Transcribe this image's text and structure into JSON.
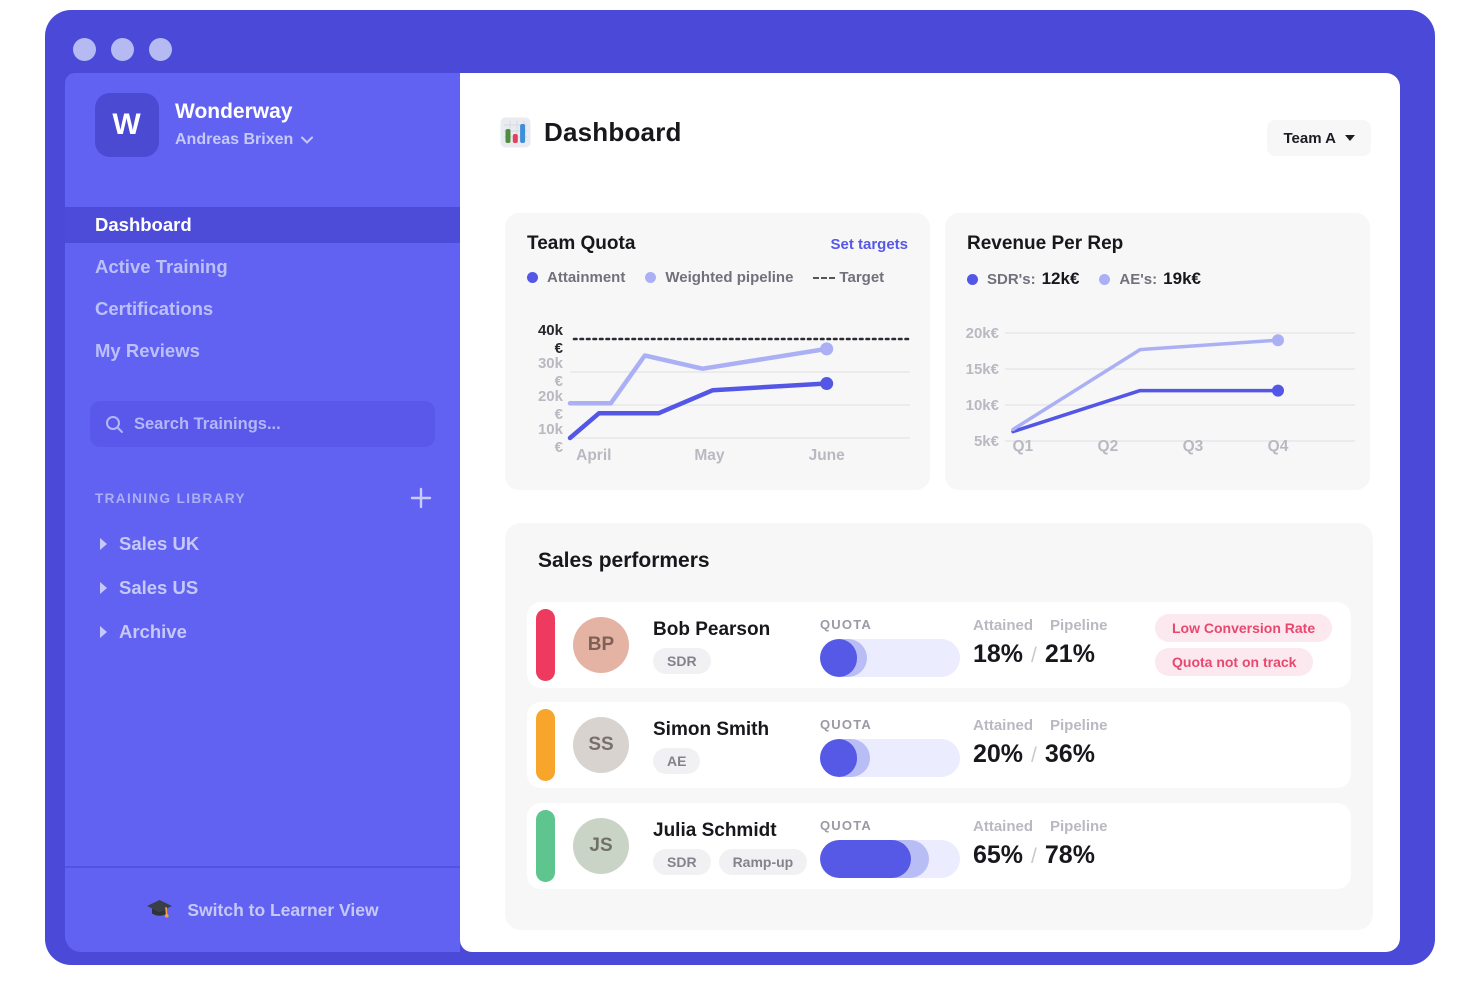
{
  "colors": {
    "frame": "#4a49d8",
    "sidebar": "#6262f2",
    "sidebar_active_item": "#4d4cd8",
    "accent": "#5457e6",
    "accent_light": "#abb0f5",
    "card_bg": "#f7f7f8",
    "alert_bg": "#fce8ef",
    "alert_text": "#e8486e"
  },
  "sidebar": {
    "logo_letter": "W",
    "app_name": "Wonderway",
    "user_name": "Andreas Brixen",
    "nav": [
      {
        "label": "Dashboard",
        "active": true
      },
      {
        "label": "Active Training",
        "active": false
      },
      {
        "label": "Certifications",
        "active": false
      },
      {
        "label": "My Reviews",
        "active": false
      }
    ],
    "search_placeholder": "Search Trainings...",
    "library": {
      "title": "TRAINING LIBRARY",
      "items": [
        "Sales UK",
        "Sales US",
        "Archive"
      ]
    },
    "footer_label": "Switch to Learner View"
  },
  "header": {
    "title": "Dashboard",
    "team_selector": "Team A"
  },
  "chart_data": [
    {
      "type": "line",
      "title": "Team Quota",
      "action": "Set targets",
      "legend": [
        {
          "label": "Attainment",
          "color": "#5457e6",
          "marker": "dot"
        },
        {
          "label": "Weighted pipeline",
          "color": "#abb0f5",
          "marker": "dot"
        },
        {
          "label": "Target",
          "marker": "dashed"
        }
      ],
      "x_categories": [
        "April",
        "May",
        "June"
      ],
      "x_positions": [
        0.07,
        0.41,
        0.755
      ],
      "yticks": [
        40,
        30,
        20,
        10
      ],
      "unit": "k€",
      "ylim": [
        5,
        43
      ],
      "target": 40,
      "grid": true,
      "series": [
        {
          "name": "Attainment",
          "color": "#5457e6",
          "points": [
            [
              0,
              10
            ],
            [
              0.085,
              17.5
            ],
            [
              0.26,
              17.5
            ],
            [
              0.42,
              24.5
            ],
            [
              0.755,
              26.5
            ]
          ]
        },
        {
          "name": "Weighted pipeline",
          "color": "#abb0f5",
          "points": [
            [
              0,
              20.5
            ],
            [
              0.12,
              20.5
            ],
            [
              0.22,
              35
            ],
            [
              0.39,
              31
            ],
            [
              0.755,
              37
            ]
          ]
        }
      ]
    },
    {
      "type": "line",
      "title": "Revenue Per Rep",
      "legend": [
        {
          "label": "SDR's:",
          "value": "12k€",
          "color": "#5457e6",
          "marker": "dot"
        },
        {
          "label": "AE's:",
          "value": "19k€",
          "color": "#abb0f5",
          "marker": "dot"
        }
      ],
      "x_categories": [
        "Q1",
        "Q2",
        "Q3",
        "Q4"
      ],
      "x_positions": [
        0.051,
        0.294,
        0.537,
        0.78
      ],
      "yticks": [
        20,
        15,
        10,
        5
      ],
      "unit": "k€",
      "ylim": [
        3,
        22
      ],
      "grid": true,
      "series": [
        {
          "name": "SDR's",
          "color": "#5457e6",
          "points": [
            [
              0.023,
              6.3
            ],
            [
              0.386,
              12
            ],
            [
              0.78,
              12
            ]
          ]
        },
        {
          "name": "AE's",
          "color": "#abb0f5",
          "points": [
            [
              0.023,
              6.6
            ],
            [
              0.386,
              17.7
            ],
            [
              0.78,
              19
            ]
          ]
        }
      ]
    }
  ],
  "performers": {
    "title": "Sales performers",
    "columns": {
      "quota": "QUOTA",
      "attained": "Attained",
      "pipeline": "Pipeline"
    },
    "rows": [
      {
        "name": "Bob Pearson",
        "tags": [
          "SDR"
        ],
        "status_color": "#ee3a5f",
        "avatar_bg": "#e5b3a3",
        "attained": "18%",
        "pipeline": "21%",
        "attained_pct": 18,
        "pipeline_pct": 21,
        "alerts": [
          "Low Conversion Rate",
          "Quota not on track"
        ]
      },
      {
        "name": "Simon Smith",
        "tags": [
          "AE"
        ],
        "status_color": "#f8a62b",
        "avatar_bg": "#d8d3ce",
        "attained": "20%",
        "pipeline": "36%",
        "attained_pct": 20,
        "pipeline_pct": 36,
        "alerts": []
      },
      {
        "name": "Julia Schmidt",
        "tags": [
          "SDR",
          "Ramp-up"
        ],
        "status_color": "#5ec58e",
        "avatar_bg": "#c9d4c6",
        "attained": "65%",
        "pipeline": "78%",
        "attained_pct": 65,
        "pipeline_pct": 78,
        "alerts": []
      }
    ]
  }
}
